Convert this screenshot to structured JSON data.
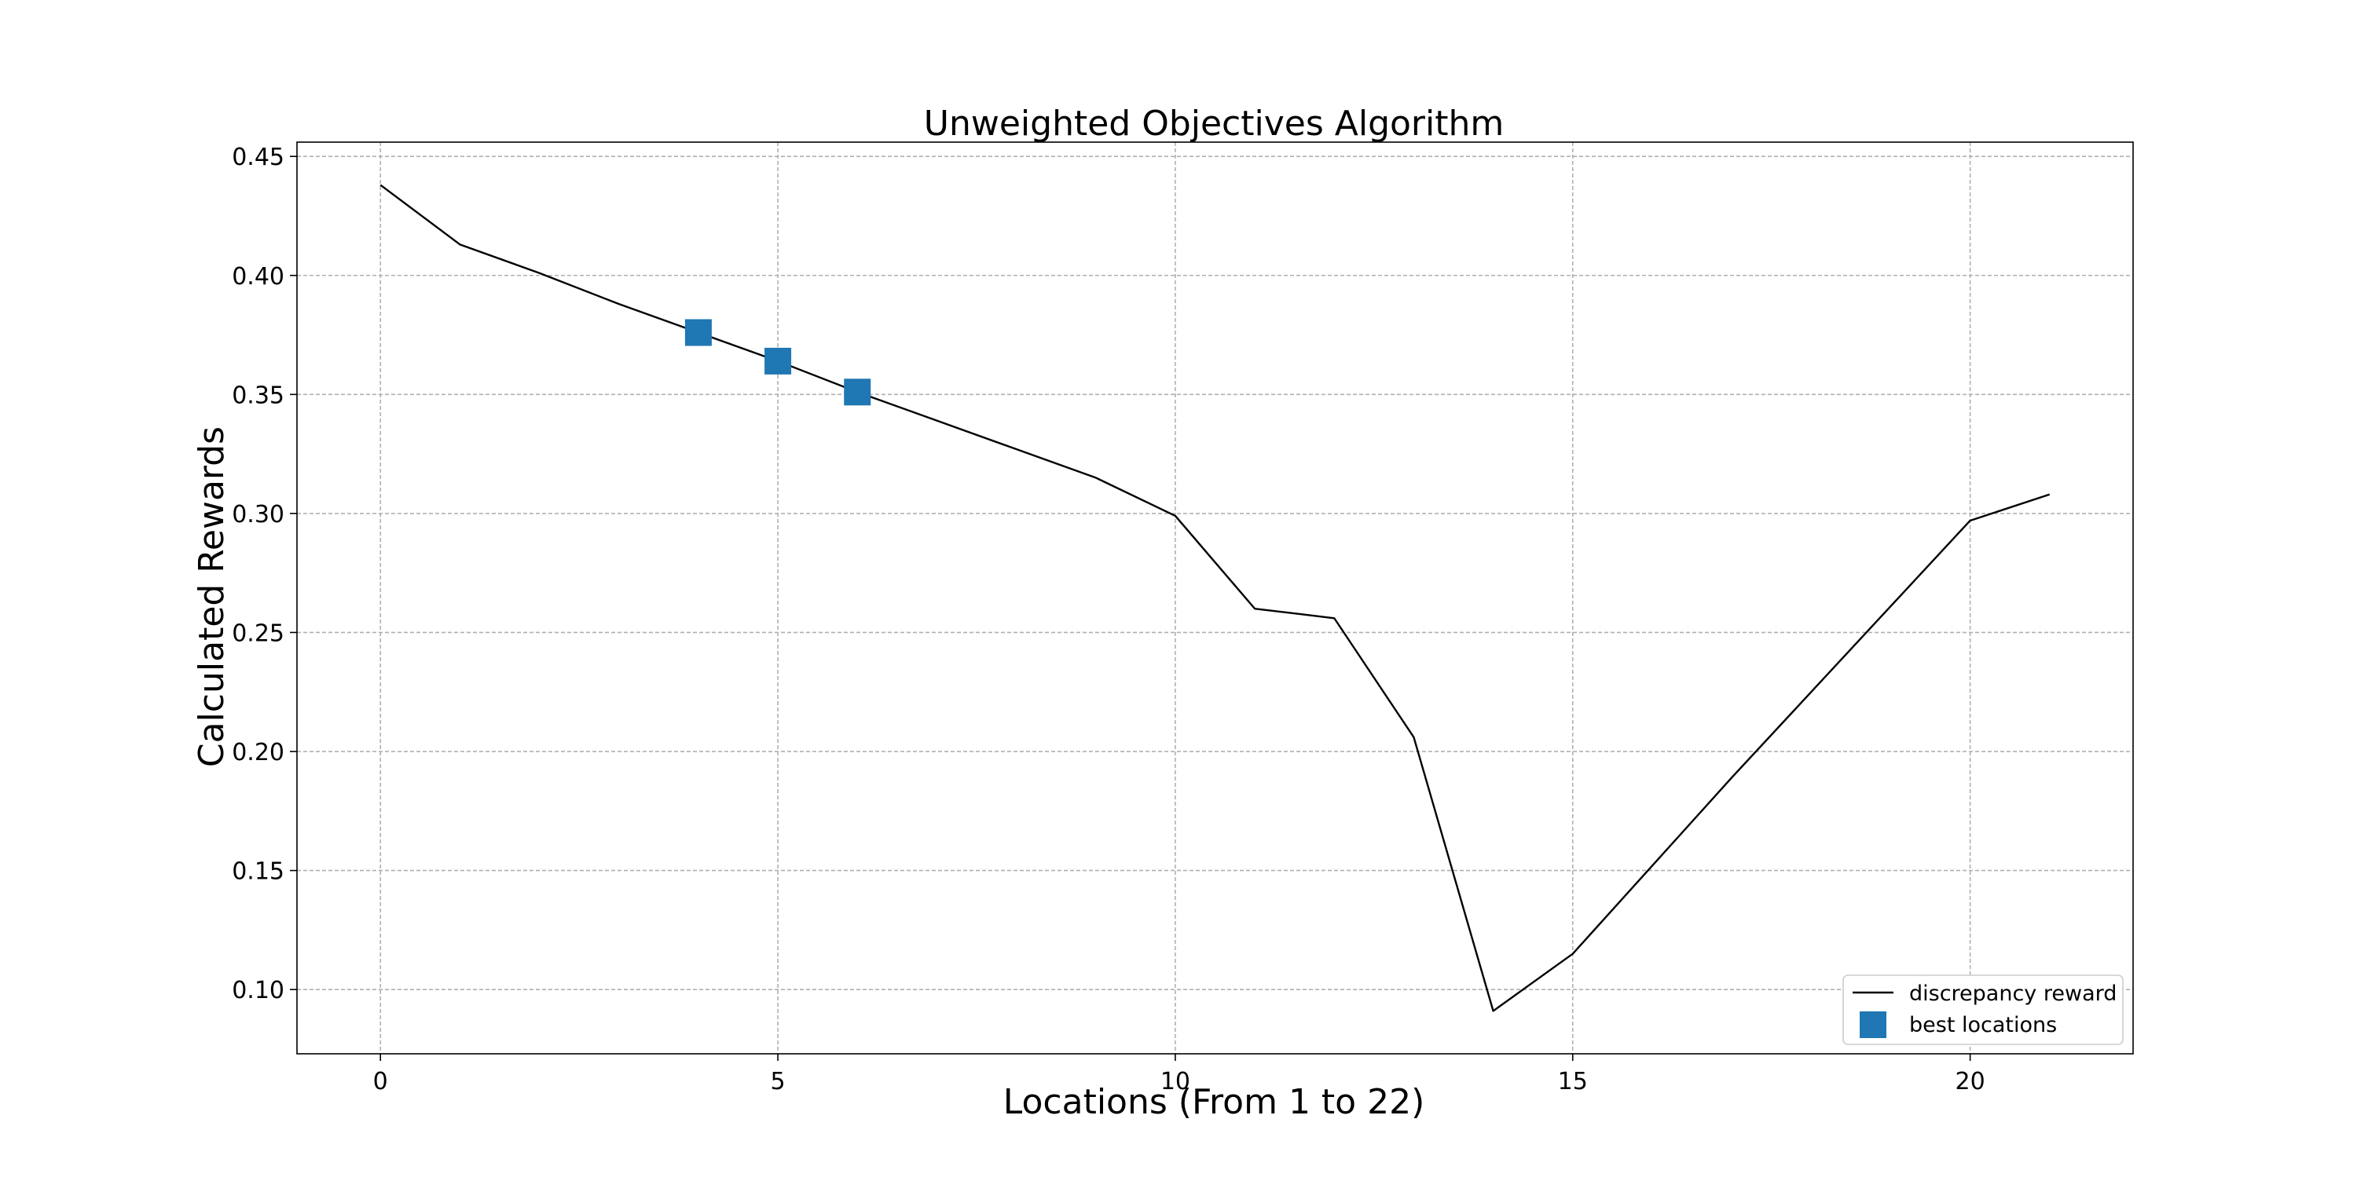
{
  "chart_data": {
    "type": "line",
    "title": "Unweighted Objectives Algorithm",
    "xlabel": "Locations (From 1 to 22)",
    "ylabel": "Calculated Rewards",
    "xlim": [
      -1.05,
      22.05
    ],
    "ylim": [
      0.073,
      0.456
    ],
    "x_ticks": [
      0,
      5,
      10,
      15,
      20
    ],
    "y_ticks": [
      0.1,
      0.15,
      0.2,
      0.25,
      0.3,
      0.35,
      0.4,
      0.45
    ],
    "grid": true,
    "legend_position": "lower-right",
    "series": [
      {
        "name": "discrepancy reward",
        "kind": "line",
        "color": "#000000",
        "x": [
          0,
          1,
          2,
          3,
          4,
          5,
          6,
          7,
          8,
          9,
          10,
          11,
          12,
          13,
          14,
          15,
          16,
          17,
          18,
          19,
          20,
          21
        ],
        "y": [
          0.438,
          0.413,
          0.401,
          0.388,
          0.376,
          0.364,
          0.351,
          0.339,
          0.327,
          0.315,
          0.299,
          0.26,
          0.256,
          0.206,
          0.091,
          0.115,
          0.152,
          0.189,
          0.225,
          0.261,
          0.297,
          0.308
        ]
      },
      {
        "name": "best locations",
        "kind": "scatter",
        "marker": "square",
        "color": "#1f77b4",
        "x": [
          4,
          5,
          6
        ],
        "y": [
          0.376,
          0.364,
          0.351
        ]
      }
    ]
  }
}
